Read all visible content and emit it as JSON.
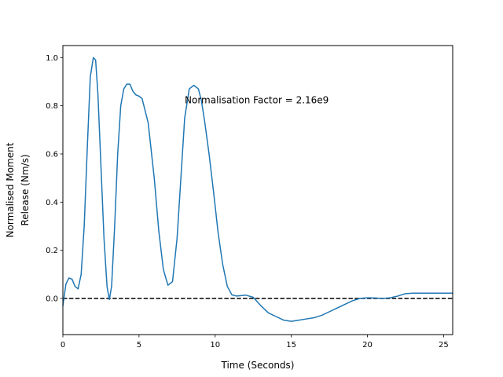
{
  "chart_data": {
    "type": "line",
    "title": "",
    "xlabel": "Time (Seconds)",
    "ylabel_lines": [
      "Normalised Moment",
      "Release (Nm/s)"
    ],
    "xlim": [
      0,
      25.6
    ],
    "ylim": [
      -0.15,
      1.05
    ],
    "xticks": [
      0,
      5,
      10,
      15,
      20,
      25
    ],
    "xtick_labels": [
      "0",
      "5",
      "10",
      "15",
      "20",
      "25"
    ],
    "yticks": [
      0.0,
      0.2,
      0.4,
      0.6,
      0.8,
      1.0
    ],
    "ytick_labels": [
      "0.0",
      "0.2",
      "0.4",
      "0.6",
      "0.8",
      "1.0"
    ],
    "grid": false,
    "annotation": {
      "text": "Normalisation Factor = 2.16e9",
      "x": 8.0,
      "y": 0.81
    },
    "reference_line": {
      "y": 0.0,
      "style": "dashed",
      "color": "#000000"
    },
    "series": [
      {
        "color": "#1f77b4",
        "x": [
          0,
          0.2,
          0.4,
          0.6,
          0.8,
          1.0,
          1.2,
          1.4,
          1.6,
          1.8,
          2.0,
          2.15,
          2.3,
          2.5,
          2.7,
          2.9,
          3.05,
          3.2,
          3.4,
          3.6,
          3.8,
          4.0,
          4.2,
          4.4,
          4.6,
          4.8,
          5.0,
          5.2,
          5.6,
          6.0,
          6.3,
          6.6,
          6.9,
          7.2,
          7.5,
          7.8,
          8.0,
          8.3,
          8.6,
          8.9,
          9.1,
          9.3,
          9.6,
          9.9,
          10.2,
          10.5,
          10.8,
          11.1,
          11.4,
          11.7,
          12.0,
          12.5,
          13.0,
          13.5,
          14.0,
          14.5,
          15.0,
          15.5,
          16.0,
          16.5,
          17.0,
          17.5,
          18.0,
          18.5,
          19.0,
          19.5,
          20.0,
          20.5,
          21.0,
          21.5,
          22.0,
          22.5,
          23.0,
          23.5,
          24.0,
          24.5,
          25.0,
          25.6
        ],
        "y": [
          -0.03,
          0.06,
          0.085,
          0.08,
          0.05,
          0.04,
          0.1,
          0.3,
          0.62,
          0.92,
          1.0,
          0.99,
          0.85,
          0.55,
          0.25,
          0.05,
          -0.005,
          0.05,
          0.3,
          0.6,
          0.8,
          0.87,
          0.89,
          0.89,
          0.86,
          0.845,
          0.84,
          0.83,
          0.73,
          0.5,
          0.28,
          0.12,
          0.055,
          0.07,
          0.25,
          0.55,
          0.75,
          0.87,
          0.885,
          0.87,
          0.82,
          0.74,
          0.6,
          0.44,
          0.27,
          0.14,
          0.05,
          0.015,
          0.01,
          0.012,
          0.014,
          0.005,
          -0.03,
          -0.06,
          -0.075,
          -0.09,
          -0.095,
          -0.09,
          -0.085,
          -0.08,
          -0.07,
          -0.055,
          -0.04,
          -0.025,
          -0.01,
          0.0,
          0.003,
          0.002,
          0.0,
          0.003,
          0.01,
          0.02,
          0.022,
          0.022,
          0.022,
          0.022,
          0.022,
          0.022
        ]
      }
    ]
  }
}
